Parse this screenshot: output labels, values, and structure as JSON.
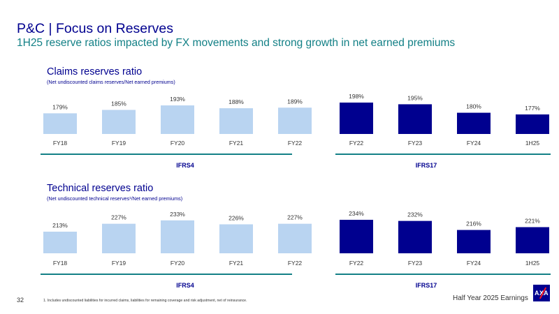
{
  "header": {
    "title": "P&C | Focus on Reserves",
    "subtitle": "1H25 reserve ratios impacted by FX movements and strong growth in net earned premiums"
  },
  "sections": [
    {
      "title": "Claims reserves ratio",
      "subtitle": "(Net undiscounted claims reserves/Net earned premiums)"
    },
    {
      "title": "Technical reserves ratio",
      "subtitle": "(Net undiscounted technical reserves¹/Net earned premiums)"
    }
  ],
  "colors": {
    "ifrs4": "#B9D4F1",
    "ifrs17": "#00008F",
    "group_line": "#138086",
    "text": "#00008F"
  },
  "chart_data": [
    {
      "type": "bar",
      "categories": [
        "FY18",
        "FY19",
        "FY20",
        "FY21",
        "FY22",
        "FY22",
        "FY23",
        "FY24",
        "1H25"
      ],
      "values": [
        179,
        185,
        193,
        188,
        189,
        198,
        195,
        180,
        177
      ],
      "data_labels": [
        "179%",
        "185%",
        "193%",
        "188%",
        "189%",
        "198%",
        "195%",
        "180%",
        "177%"
      ],
      "groups": [
        {
          "name": "IFRS4",
          "indices": [
            0,
            1,
            2,
            3,
            4
          ]
        },
        {
          "name": "IFRS17",
          "indices": [
            5,
            6,
            7,
            8
          ]
        }
      ],
      "unit": "%"
    },
    {
      "type": "bar",
      "categories": [
        "FY18",
        "FY19",
        "FY20",
        "FY21",
        "FY22",
        "FY22",
        "FY23",
        "FY24",
        "1H25"
      ],
      "values": [
        213,
        227,
        233,
        226,
        227,
        234,
        232,
        216,
        221
      ],
      "data_labels": [
        "213%",
        "227%",
        "233%",
        "226%",
        "227%",
        "234%",
        "232%",
        "216%",
        "221%"
      ],
      "groups": [
        {
          "name": "IFRS4",
          "indices": [
            0,
            1,
            2,
            3,
            4
          ]
        },
        {
          "name": "IFRS17",
          "indices": [
            5,
            6,
            7,
            8
          ]
        }
      ],
      "unit": "%"
    }
  ],
  "footer": {
    "page_number": "32",
    "footnote": "1. Includes undiscounted liabilities for incurred claims, liabilities for remaining coverage and risk adjustment, net of reinsurance.",
    "label": "Half Year 2025 Earnings",
    "logo_text": "AXA"
  }
}
